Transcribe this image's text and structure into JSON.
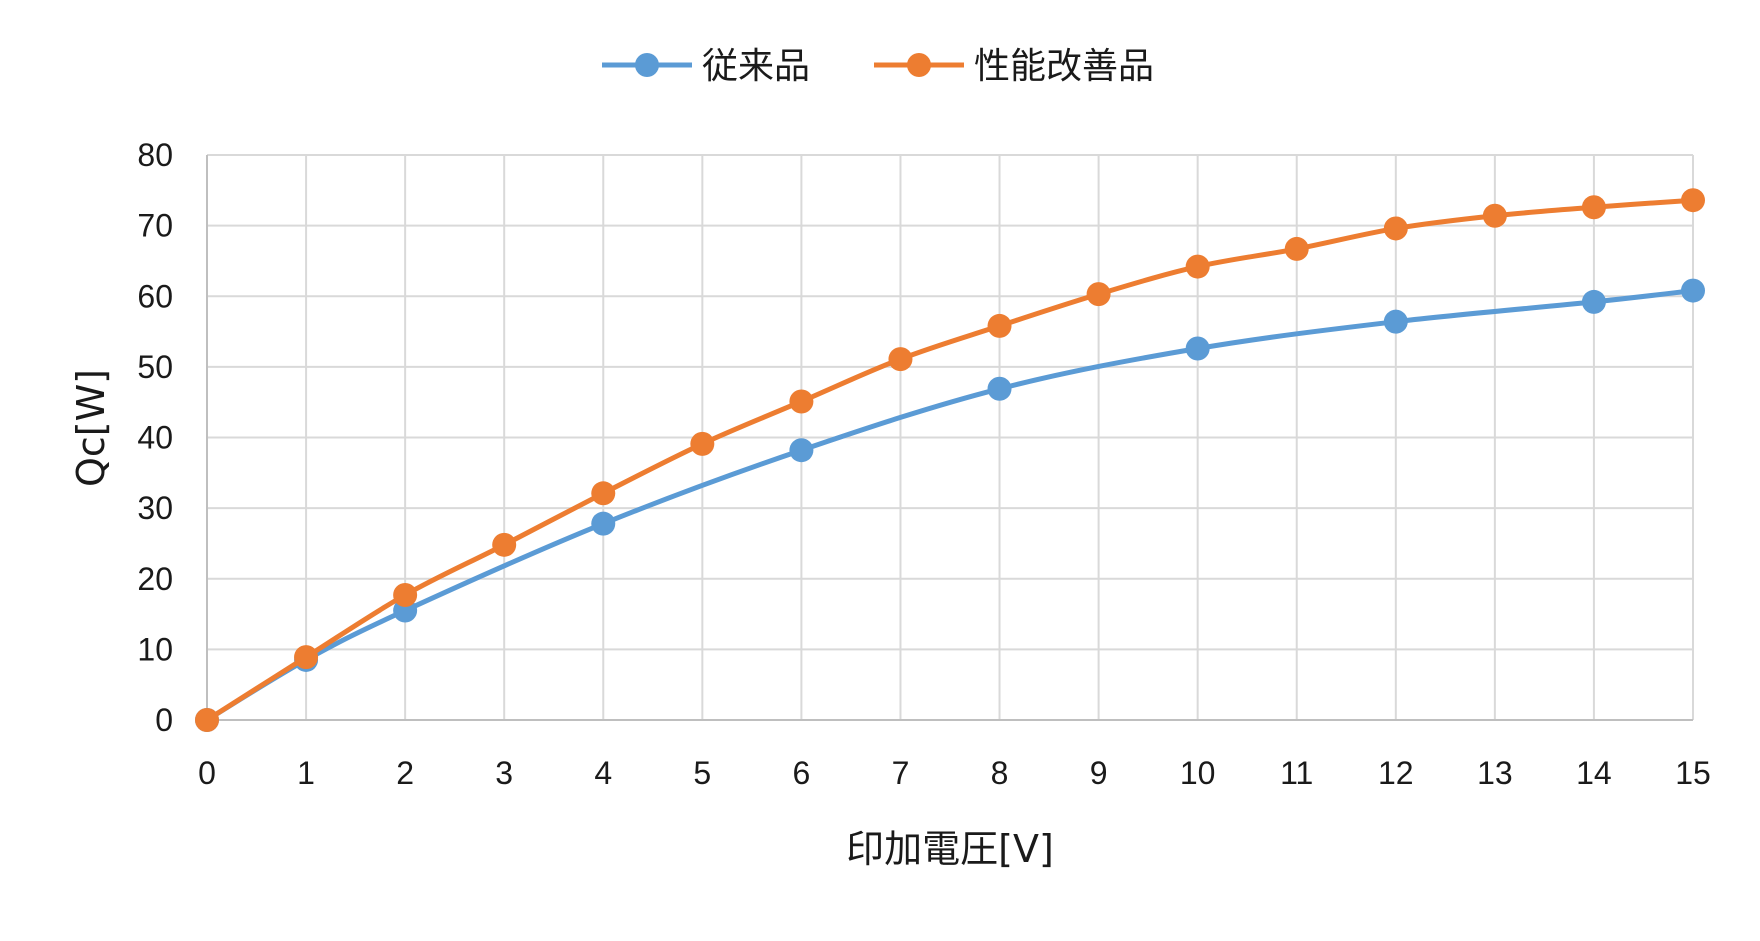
{
  "chart_data": {
    "type": "line",
    "title": "",
    "xlabel": "印加電圧[V]",
    "ylabel": "Qc[W]",
    "xlim": [
      0,
      15
    ],
    "ylim": [
      0,
      80
    ],
    "x_ticks": [
      "0",
      "1",
      "2",
      "3",
      "4",
      "5",
      "6",
      "7",
      "8",
      "9",
      "10",
      "11",
      "12",
      "13",
      "14",
      "15"
    ],
    "y_ticks": [
      "0",
      "10",
      "20",
      "30",
      "40",
      "50",
      "60",
      "70",
      "80"
    ],
    "grid": true,
    "legend_position": "top-center",
    "series": [
      {
        "name": "従来品",
        "color": "#5b9bd5",
        "x": [
          0,
          1,
          2,
          4,
          6,
          8,
          10,
          12,
          14,
          15
        ],
        "y": [
          0,
          8.5,
          15.5,
          27.8,
          38.2,
          46.9,
          52.6,
          56.4,
          59.2,
          60.8
        ]
      },
      {
        "name": "性能改善品",
        "color": "#ed7d31",
        "x": [
          0,
          1,
          2,
          3,
          4,
          5,
          6,
          7,
          8,
          9,
          10,
          11,
          12,
          13,
          14,
          15
        ],
        "y": [
          0,
          8.9,
          17.7,
          24.8,
          32.1,
          39.1,
          45.1,
          51.1,
          55.8,
          60.3,
          64.2,
          66.7,
          69.6,
          71.4,
          72.6,
          73.6
        ]
      }
    ]
  }
}
